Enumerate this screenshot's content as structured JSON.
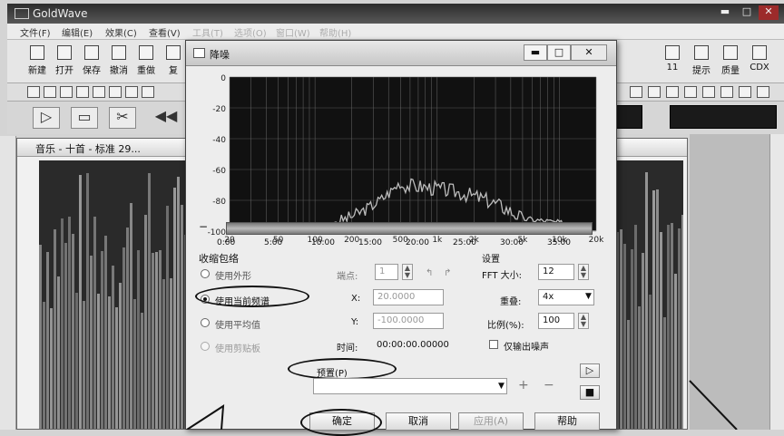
{
  "app": {
    "title": "GoldWave"
  },
  "menu": [
    "文件(F)",
    "编辑(E)",
    "效果(C)",
    "查看(V)",
    "工具(T)",
    "选项(O)",
    "窗口(W)",
    "帮助(H)"
  ],
  "toolbar": {
    "buttons": [
      "新建",
      "打开",
      "保存",
      "撤消",
      "重做",
      "复"
    ],
    "right_buttons": [
      "提示",
      "质量",
      "CDX"
    ],
    "right_numbers": [
      "11"
    ]
  },
  "sound_window": {
    "title": "音乐 - 十首 - 标准 29..."
  },
  "dialog": {
    "title": "降噪",
    "y_ticks": [
      "0",
      "-20",
      "-40",
      "-60",
      "-80",
      "-100"
    ],
    "freq_ticks": [
      "20",
      "50",
      "100",
      "200",
      "500",
      "1k",
      "2k",
      "5k",
      "10k",
      "20k"
    ],
    "time_ticks": [
      "0:00",
      "5:00",
      "10:00",
      "15:00",
      "20:00",
      "25:00",
      "30:00",
      "35:00"
    ],
    "envelope_group": "收缩包络",
    "options": [
      "使用外形",
      "使用当前频谱",
      "使用平均值",
      "使用剪贴板"
    ],
    "selected_option": "使用当前频谱",
    "point_label": "端点:",
    "point_value": "1",
    "x_label": "X:",
    "x_value": "20.0000",
    "y_label": "Y:",
    "y_value": "-100.0000",
    "time_label": "时间:",
    "time_value": "00:00:00.00000",
    "settings_group": "设置",
    "fft_label": "FFT 大小:",
    "fft_value": "12",
    "overlap_label": "重叠:",
    "overlap_value": "4x",
    "ratio_label": "比例(%):",
    "ratio_value": "100",
    "checkbox_label": "仅输出噪声",
    "preset_label": "预置(P)",
    "buttons": {
      "ok": "确定",
      "cancel": "取消",
      "apply": "应用(A)",
      "help": "帮助"
    }
  },
  "colors": {
    "spectrum_bg": "#111111",
    "title_dark": "#2c2c2c",
    "dialog_bg": "#ededed"
  }
}
